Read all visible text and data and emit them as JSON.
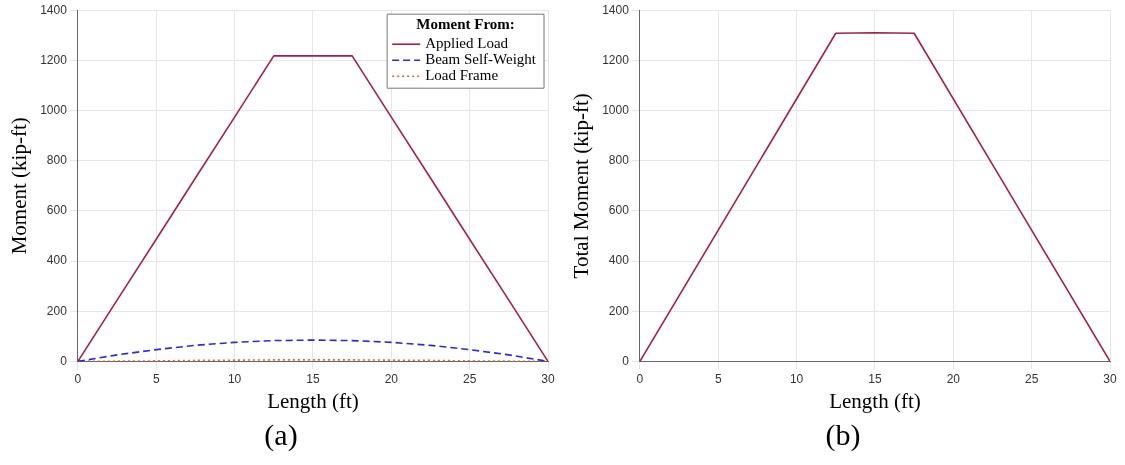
{
  "chart_data": [
    {
      "type": "line",
      "xlabel": "Length (ft)",
      "ylabel": "Moment (kip-ft)",
      "legend_title": "Moment From:",
      "annotations": [
        "(a)"
      ],
      "x": [
        0,
        2.5,
        5,
        7.5,
        10,
        12.5,
        15,
        17.5,
        20,
        22.5,
        25,
        27.5,
        30
      ],
      "series": [
        {
          "name": "Applied Load",
          "color": "#a2204f",
          "line_style": "solid",
          "values": [
            0,
            244,
            487,
            731,
            974,
            1218,
            1218,
            1218,
            974,
            731,
            487,
            244,
            0
          ]
        },
        {
          "name": "Beam Self-Weight",
          "color": "#2a2ad8",
          "line_style": "dashed",
          "values": [
            0,
            26,
            47,
            64,
            76,
            83,
            85,
            83,
            76,
            64,
            47,
            26,
            0
          ]
        },
        {
          "name": "Load Frame",
          "color": "#e2652a",
          "line_style": "dotted",
          "values": [
            0,
            1,
            2,
            4,
            5,
            6,
            6,
            6,
            5,
            4,
            2,
            1,
            0
          ]
        }
      ],
      "xlim": [
        0,
        30
      ],
      "ylim": [
        0,
        1400
      ],
      "xticks": [
        0,
        5,
        10,
        15,
        20,
        25,
        30
      ],
      "yticks": [
        0,
        200,
        400,
        600,
        800,
        1000,
        1200,
        1400
      ],
      "grid": true,
      "legend": "top right",
      "marker": "none"
    },
    {
      "type": "line",
      "xlabel": "Length (ft)",
      "ylabel": "Total Moment (kip-ft)",
      "annotations": [
        "(b)"
      ],
      "x": [
        0,
        12.5,
        15,
        17.5,
        30
      ],
      "series": [
        {
          "color": "#a2204f",
          "line_style": "solid",
          "values": [
            0,
            1308,
            1310,
            1308,
            0
          ]
        }
      ],
      "xlim": [
        0,
        30
      ],
      "ylim": [
        0,
        1400
      ],
      "xticks": [
        0,
        5,
        10,
        15,
        20,
        25,
        30
      ],
      "yticks": [
        0,
        200,
        400,
        600,
        800,
        1000,
        1200,
        1400
      ],
      "grid": true,
      "legend": false,
      "marker": "none"
    }
  ]
}
